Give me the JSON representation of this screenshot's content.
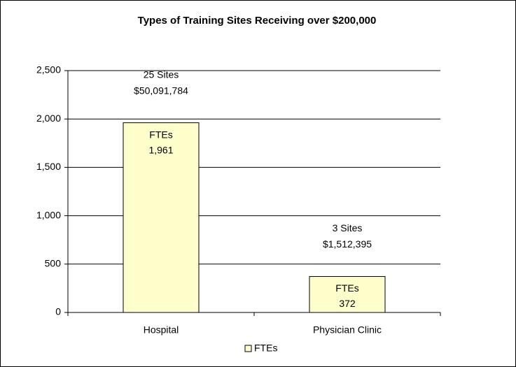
{
  "chart_data": {
    "type": "bar",
    "title": "Types of Training Sites Receiving over $200,000",
    "categories": [
      "Hospital",
      "Physician Clinic"
    ],
    "series": [
      {
        "name": "FTEs",
        "color": "#ffffcc",
        "values": [
          1961,
          372
        ],
        "value_labels": [
          "1,961",
          "372"
        ]
      }
    ],
    "annotations": [
      [
        "25 Sites",
        "$50,091,784"
      ],
      [
        "3 Sites",
        "$1,512,395"
      ]
    ],
    "ylim": [
      0,
      2500
    ],
    "yticks": [
      0,
      500,
      {
        "value": 1000,
        "label": "1,000"
      },
      {
        "value": 1500,
        "label": "1,500"
      },
      {
        "value": 2000,
        "label": "2,000"
      },
      {
        "value": 2500,
        "label": "2,500"
      }
    ],
    "grid": true,
    "legend": "bottom"
  }
}
